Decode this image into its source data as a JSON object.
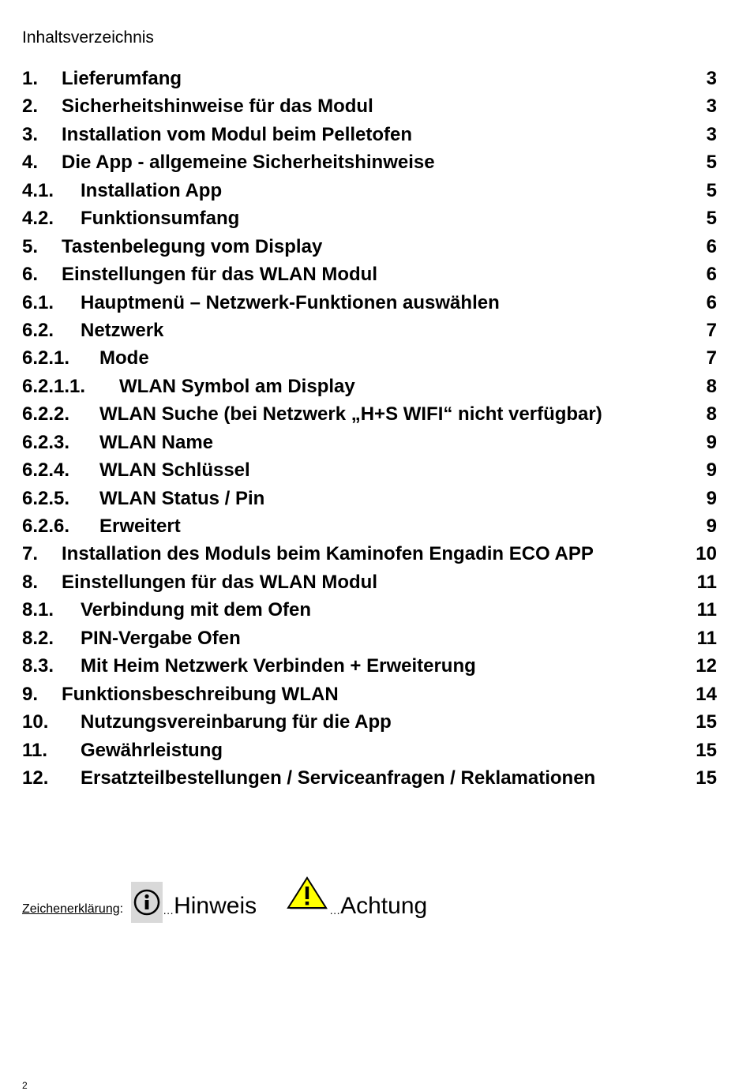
{
  "heading": "Inhaltsverzeichnis",
  "toc": [
    {
      "num": "1.",
      "title": "Lieferumfang",
      "page": "3",
      "level": 1
    },
    {
      "num": "2.",
      "title": "Sicherheitshinweise für das Modul",
      "page": "3",
      "level": 1
    },
    {
      "num": "3.",
      "title": "Installation vom Modul beim Pelletofen",
      "page": "3",
      "level": 1
    },
    {
      "num": "4.",
      "title": "Die App - allgemeine Sicherheitshinweise",
      "page": "5",
      "level": 1
    },
    {
      "num": "4.1.",
      "title": "Installation App",
      "page": "5",
      "level": 2
    },
    {
      "num": "4.2.",
      "title": "Funktionsumfang",
      "page": "5",
      "level": 2
    },
    {
      "num": "5.",
      "title": "Tastenbelegung vom Display",
      "page": "6",
      "level": 1
    },
    {
      "num": "6.",
      "title": "Einstellungen für das WLAN Modul",
      "page": "6",
      "level": 1
    },
    {
      "num": "6.1.",
      "title": "Hauptmenü – Netzwerk-Funktionen auswählen",
      "page": "6",
      "level": 2
    },
    {
      "num": "6.2.",
      "title": "Netzwerk",
      "page": "7",
      "level": 2
    },
    {
      "num": "6.2.1.",
      "title": "Mode",
      "page": "7",
      "level": 3
    },
    {
      "num": "6.2.1.1.",
      "title": "WLAN Symbol am Display",
      "page": "8",
      "level": 4
    },
    {
      "num": "6.2.2.",
      "title": "WLAN Suche (bei Netzwerk „H+S WIFI“ nicht verfügbar)",
      "page": "8",
      "level": 3
    },
    {
      "num": "6.2.3.",
      "title": "WLAN Name",
      "page": "9",
      "level": 3
    },
    {
      "num": "6.2.4.",
      "title": "WLAN Schlüssel",
      "page": "9",
      "level": 3
    },
    {
      "num": "6.2.5.",
      "title": "WLAN Status / Pin",
      "page": "9",
      "level": 3
    },
    {
      "num": "6.2.6.",
      "title": "Erweitert",
      "page": "9",
      "level": 3
    },
    {
      "num": "7.",
      "title": "Installation des Moduls beim Kaminofen Engadin ECO APP",
      "page": "10",
      "level": 1
    },
    {
      "num": "8.",
      "title": "Einstellungen für das WLAN Modul",
      "page": "11",
      "level": 1
    },
    {
      "num": "8.1.",
      "title": "Verbindung mit dem Ofen",
      "page": "11",
      "level": 2
    },
    {
      "num": "8.2.",
      "title": "PIN-Vergabe Ofen",
      "page": "11",
      "level": 2
    },
    {
      "num": "8.3.",
      "title": "Mit Heim Netzwerk Verbinden + Erweiterung",
      "page": "12",
      "level": 2
    },
    {
      "num": "9.",
      "title": "Funktionsbeschreibung WLAN",
      "page": "14",
      "level": 1
    },
    {
      "num": "10.",
      "title": "Nutzungsvereinbarung für die App",
      "page": "15",
      "level": 2
    },
    {
      "num": "11.",
      "title": "Gewährleistung",
      "page": "15",
      "level": 2
    },
    {
      "num": "12.",
      "title": "Ersatzteilbestellungen / Serviceanfragen / Reklamationen",
      "page": "15",
      "level": 2
    }
  ],
  "legend": {
    "label": "Zeichenerklärung",
    "colon": ":",
    "dots": "…",
    "info_icon": "info-circle-icon",
    "info_text": "Hinweis",
    "warning_icon": "warning-triangle-icon",
    "warning_color": "#ffff00",
    "warning_text": "Achtung"
  },
  "page_number": "2"
}
